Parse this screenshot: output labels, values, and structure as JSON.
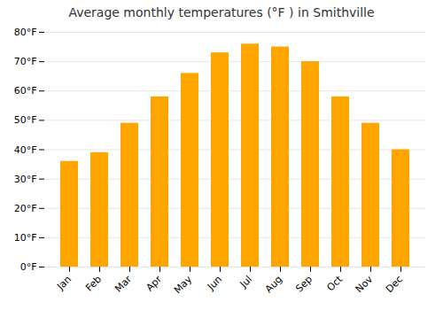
{
  "chart_data": {
    "type": "bar",
    "title": "Average monthly temperatures (°F ) in Smithville",
    "categories": [
      "Jan",
      "Feb",
      "Mar",
      "Apr",
      "May",
      "Jun",
      "Jul",
      "Aug",
      "Sep",
      "Oct",
      "Nov",
      "Dec"
    ],
    "values": [
      36,
      39,
      49,
      58,
      66,
      73,
      76,
      75,
      70,
      58,
      49,
      40
    ],
    "color": "#FFA500",
    "ylim": [
      0,
      80
    ],
    "yticks": [
      {
        "value": 0,
        "label": "0°F"
      },
      {
        "value": 10,
        "label": "10°F"
      },
      {
        "value": 20,
        "label": "20°F"
      },
      {
        "value": 30,
        "label": "30°F"
      },
      {
        "value": 40,
        "label": "40°F"
      },
      {
        "value": 50,
        "label": "50°F"
      },
      {
        "value": 60,
        "label": "60°F"
      },
      {
        "value": 70,
        "label": "70°F"
      },
      {
        "value": 80,
        "label": "80°F"
      }
    ],
    "grid": true
  }
}
